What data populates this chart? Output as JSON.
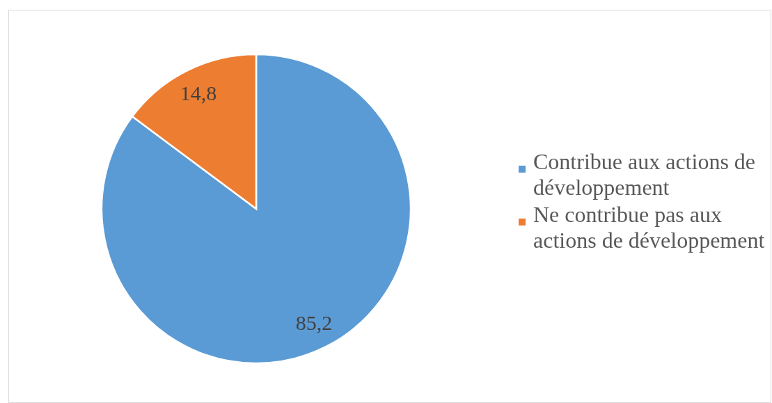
{
  "chart_data": {
    "type": "pie",
    "categories": [
      "Contribue aux actions de développement",
      "Ne contribue pas aux actions de développement"
    ],
    "values": [
      85.2,
      14.8
    ],
    "colors": [
      "#5b9bd5",
      "#ed7d31"
    ],
    "value_labels": [
      "85,2",
      "14,8"
    ],
    "legend": "right"
  }
}
